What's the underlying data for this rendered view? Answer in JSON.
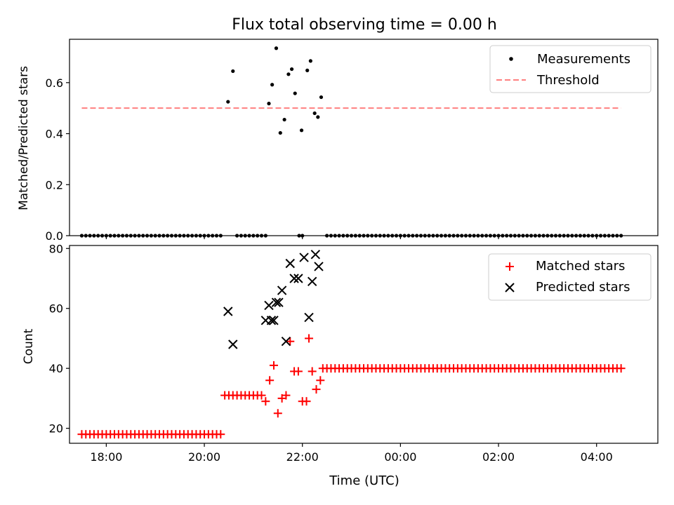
{
  "figure": {
    "title": "Flux total observing time = 0.00 h",
    "xlabel": "Time (UTC)"
  },
  "chart_data": [
    {
      "type": "scatter",
      "panel": "top",
      "ylabel": "Matched/Predicted stars",
      "xlim": [
        "17:15",
        "05:15"
      ],
      "ylim": [
        0,
        0.77
      ],
      "yticks": [
        "0.0",
        "0.2",
        "0.4",
        "0.6"
      ],
      "legend_position": "top-right",
      "legend": [
        "Measurements",
        "Threshold"
      ],
      "threshold": {
        "name": "Threshold",
        "value": 0.5,
        "x_start": "17:30",
        "x_end": "04:30",
        "color": "#ff7f7f",
        "style": "dashed"
      },
      "series": [
        {
          "name": "Measurements",
          "color": "#000000",
          "marker": "dot",
          "points": [
            [
              "20:29",
              0.525
            ],
            [
              "20:35",
              0.645
            ],
            [
              "21:19",
              0.518
            ],
            [
              "21:23",
              0.592
            ],
            [
              "21:28",
              0.735
            ],
            [
              "21:33",
              0.403
            ],
            [
              "21:38",
              0.455
            ],
            [
              "21:43",
              0.633
            ],
            [
              "21:47",
              0.653
            ],
            [
              "21:51",
              0.558
            ],
            [
              "21:59",
              0.413
            ],
            [
              "22:06",
              0.648
            ],
            [
              "22:10",
              0.685
            ],
            [
              "22:15",
              0.48
            ],
            [
              "22:19",
              0.465
            ],
            [
              "22:23",
              0.543
            ]
          ],
          "zeros": [
            {
              "from": "17:30",
              "to": "20:20",
              "step_min": 5
            },
            {
              "from": "20:40",
              "to": "21:15",
              "step_min": 5
            },
            {
              "from": "21:56",
              "to": "21:56",
              "step_min": 5
            },
            {
              "from": "22:00",
              "to": "22:00",
              "step_min": 5
            },
            {
              "from": "22:30",
              "to": "04:30",
              "step_min": 5
            }
          ]
        }
      ]
    },
    {
      "type": "scatter",
      "panel": "bottom",
      "ylabel": "Count",
      "xlim": [
        "17:15",
        "05:15"
      ],
      "ylim": [
        15,
        81
      ],
      "yticks": [
        "20",
        "40",
        "60",
        "80"
      ],
      "xticks": [
        "18:00",
        "20:00",
        "22:00",
        "00:00",
        "02:00",
        "04:00"
      ],
      "legend_position": "top-right",
      "legend": [
        "Matched stars",
        "Predicted stars"
      ],
      "series": [
        {
          "name": "Matched stars",
          "color": "#ff0000",
          "marker": "plus",
          "runs": [
            {
              "from": "17:30",
              "to": "20:20",
              "step_min": 5,
              "value": 18
            },
            {
              "from": "20:25",
              "to": "21:10",
              "step_min": 5,
              "value": 31
            },
            {
              "from": "22:25",
              "to": "04:30",
              "step_min": 5,
              "value": 40
            }
          ],
          "points": [
            [
              "21:15",
              29
            ],
            [
              "21:20",
              36
            ],
            [
              "21:25",
              41
            ],
            [
              "21:30",
              25
            ],
            [
              "21:35",
              30
            ],
            [
              "21:40",
              31
            ],
            [
              "21:45",
              49
            ],
            [
              "21:50",
              39
            ],
            [
              "21:55",
              39
            ],
            [
              "22:00",
              29
            ],
            [
              "22:05",
              29
            ],
            [
              "22:08",
              50
            ],
            [
              "22:12",
              39
            ],
            [
              "22:17",
              33
            ],
            [
              "22:22",
              36
            ]
          ]
        },
        {
          "name": "Predicted stars",
          "color": "#000000",
          "marker": "x",
          "points": [
            [
              "20:29",
              59
            ],
            [
              "20:35",
              48
            ],
            [
              "21:15",
              56
            ],
            [
              "21:19",
              61
            ],
            [
              "21:22",
              56
            ],
            [
              "21:25",
              56
            ],
            [
              "21:28",
              62
            ],
            [
              "21:31",
              62
            ],
            [
              "21:35",
              66
            ],
            [
              "21:40",
              49
            ],
            [
              "21:45",
              75
            ],
            [
              "21:50",
              70
            ],
            [
              "21:55",
              70
            ],
            [
              "22:02",
              77
            ],
            [
              "22:08",
              57
            ],
            [
              "22:12",
              69
            ],
            [
              "22:16",
              78
            ],
            [
              "22:20",
              74
            ]
          ]
        }
      ]
    }
  ]
}
